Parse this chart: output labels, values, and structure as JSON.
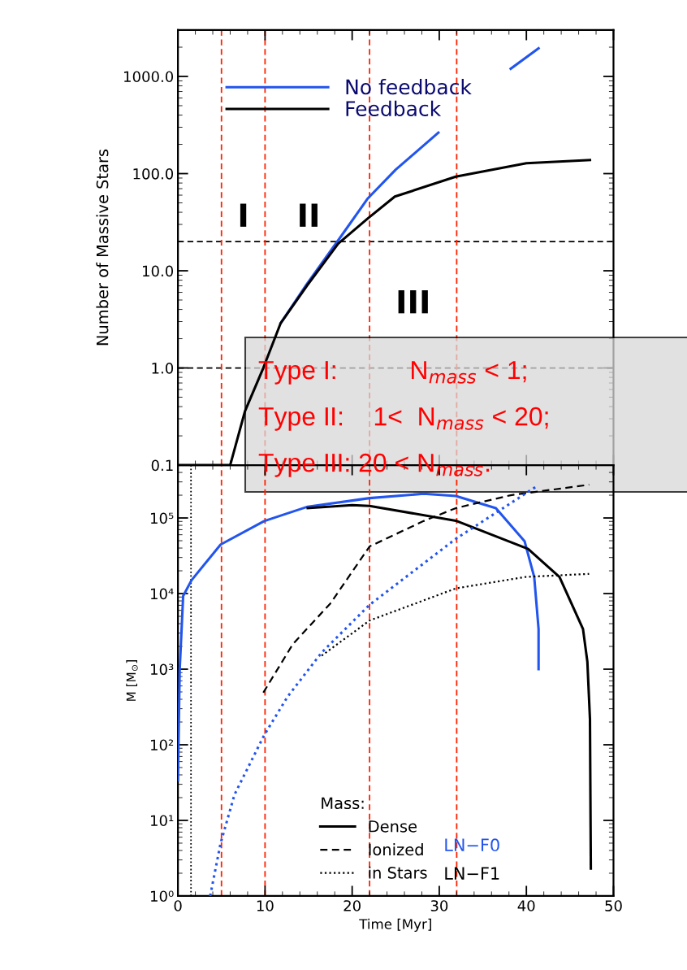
{
  "chart_data": [
    {
      "type": "line",
      "ylabel": "Number of Massive Stars",
      "log": "y",
      "xlim": [
        0,
        50
      ],
      "xticks": [
        0,
        10,
        20,
        30,
        40,
        50
      ],
      "ylim": [
        0.1,
        3000
      ],
      "yticks": [
        {
          "value": 0.1,
          "label": "0.1"
        },
        {
          "value": 1,
          "label": "1.0"
        },
        {
          "value": 10,
          "label": "10.0"
        },
        {
          "value": 100,
          "label": "100.0"
        },
        {
          "value": 1000,
          "label": "1000.0"
        }
      ],
      "tick_labels": "y",
      "grid": false,
      "legend": "top left",
      "series": [
        {
          "name": "No feedback",
          "color": "#2255ee",
          "line_style": "solid",
          "x": [
            11.8,
            14.8,
            18.4,
            21.8,
            25,
            29.9,
            34,
            38.2,
            41.4
          ],
          "values": [
            2.9,
            7.3,
            20.6,
            55.6,
            110,
            264,
            null,
            1200,
            1950
          ]
        },
        {
          "name": "Feedback",
          "color": "#000000",
          "line_style": "solid",
          "x": [
            0,
            6.0,
            7.7,
            9.8,
            11.8,
            14.8,
            18.4,
            21.8,
            24.9,
            31.9,
            40,
            47.3
          ],
          "values": [
            0.1,
            0.1,
            0.36,
            1.0,
            2.9,
            7.0,
            19,
            34.6,
            58,
            93,
            128,
            138
          ]
        }
      ],
      "ref_lines": [
        {
          "axis": "y",
          "value": 20,
          "color": "#000000",
          "line_style": "dashed"
        },
        {
          "axis": "y",
          "value": 1,
          "color": "#000000",
          "line_style": "dashed"
        },
        {
          "axis": "x",
          "value": 5,
          "color": "#ff2200",
          "line_style": "dashed"
        },
        {
          "axis": "x",
          "value": 10,
          "color": "#ff2200",
          "line_style": "dashed"
        },
        {
          "axis": "x",
          "value": 22,
          "color": "#ff2200",
          "line_style": "dashed"
        },
        {
          "axis": "x",
          "value": 32,
          "color": "#ff2200",
          "line_style": "dashed"
        }
      ],
      "annotations": [
        "I",
        "II",
        "III",
        "Type I:          N$_{mass}$ < 1;",
        "Type II:    1<  N$_{mass}$ < 20;",
        "Type III: 20 < N$_{mass}$."
      ]
    },
    {
      "type": "line",
      "xlabel": "Time [Myr]",
      "ylabel": "M [M$_{⊙}$]",
      "log": "y",
      "xlim": [
        0,
        50
      ],
      "xticks": [
        0,
        10,
        20,
        30,
        40,
        50
      ],
      "ylim": [
        1,
        500000
      ],
      "yticks": [
        {
          "value": 1,
          "label": "10⁰"
        },
        {
          "value": 10,
          "label": "10¹"
        },
        {
          "value": 100,
          "label": "10²"
        },
        {
          "value": 1000,
          "label": "10³"
        },
        {
          "value": 10000,
          "label": "10⁴"
        },
        {
          "value": 100000,
          "label": "10⁵"
        }
      ],
      "grid": false,
      "legend": "bottom",
      "legend_title": "Mass:",
      "series": [
        {
          "color": "#2255ee",
          "line_style": "solid",
          "x": [
            0,
            0.2,
            0.6,
            1.56,
            4.9,
            9.9,
            14.9,
            22,
            28.2,
            31.9,
            36.5,
            39.8,
            40.9,
            41.4,
            41.4
          ],
          "values": [
            34,
            970,
            9300,
            15000,
            44500,
            91000,
            141000,
            183000,
            209000,
            195000,
            135000,
            49000,
            16600,
            3400,
            1000
          ]
        },
        {
          "name": "Dense",
          "color": "#000000",
          "line_style": "solid",
          "x": [
            14.9,
            20,
            22,
            31.9,
            40.2,
            43.8,
            46.5,
            47,
            47.3,
            47.4
          ],
          "values": [
            135000,
            148000,
            144000,
            92000,
            39000,
            16600,
            3400,
            1260,
            218,
            2.3
          ]
        },
        {
          "name": "Ionized",
          "color": "#000000",
          "line_style": "dashed",
          "x": [
            9.8,
            13.2,
            17.5,
            22,
            28.2,
            31.9,
            38.2,
            47.2
          ],
          "values": [
            490,
            2150,
            7400,
            42000,
            91000,
            135000,
            200000,
            275000
          ]
        },
        {
          "color": "#2255ee",
          "line_style": "dotted",
          "x": [
            3.7,
            4.9,
            6.5,
            9.9,
            12.6,
            16.5,
            22,
            31.9,
            36.5,
            41.2
          ],
          "values": [
            1,
            5,
            22,
            134,
            435,
            1660,
            7100,
            53000,
            117000,
            263000
          ]
        },
        {
          "name": "in Stars",
          "color": "#000000",
          "line_style": "dotted",
          "x": [
            16.5,
            22,
            31.9,
            39.9,
            47.2
          ],
          "values": [
            1510,
            4400,
            11700,
            16600,
            18200
          ]
        }
      ],
      "ref_lines": [
        {
          "axis": "x",
          "value": 1.5,
          "color": "#000000",
          "line_style": "dotted"
        },
        {
          "axis": "x",
          "value": 5,
          "color": "#ff2200",
          "line_style": "dashed"
        },
        {
          "axis": "x",
          "value": 10,
          "color": "#ff2200",
          "line_style": "dashed"
        },
        {
          "axis": "x",
          "value": 22,
          "color": "#ff2200",
          "line_style": "dashed"
        },
        {
          "axis": "x",
          "value": 32,
          "color": "#ff2200",
          "line_style": "dashed"
        }
      ],
      "annotations": [
        "LN−F0",
        "LN−F1"
      ]
    }
  ]
}
